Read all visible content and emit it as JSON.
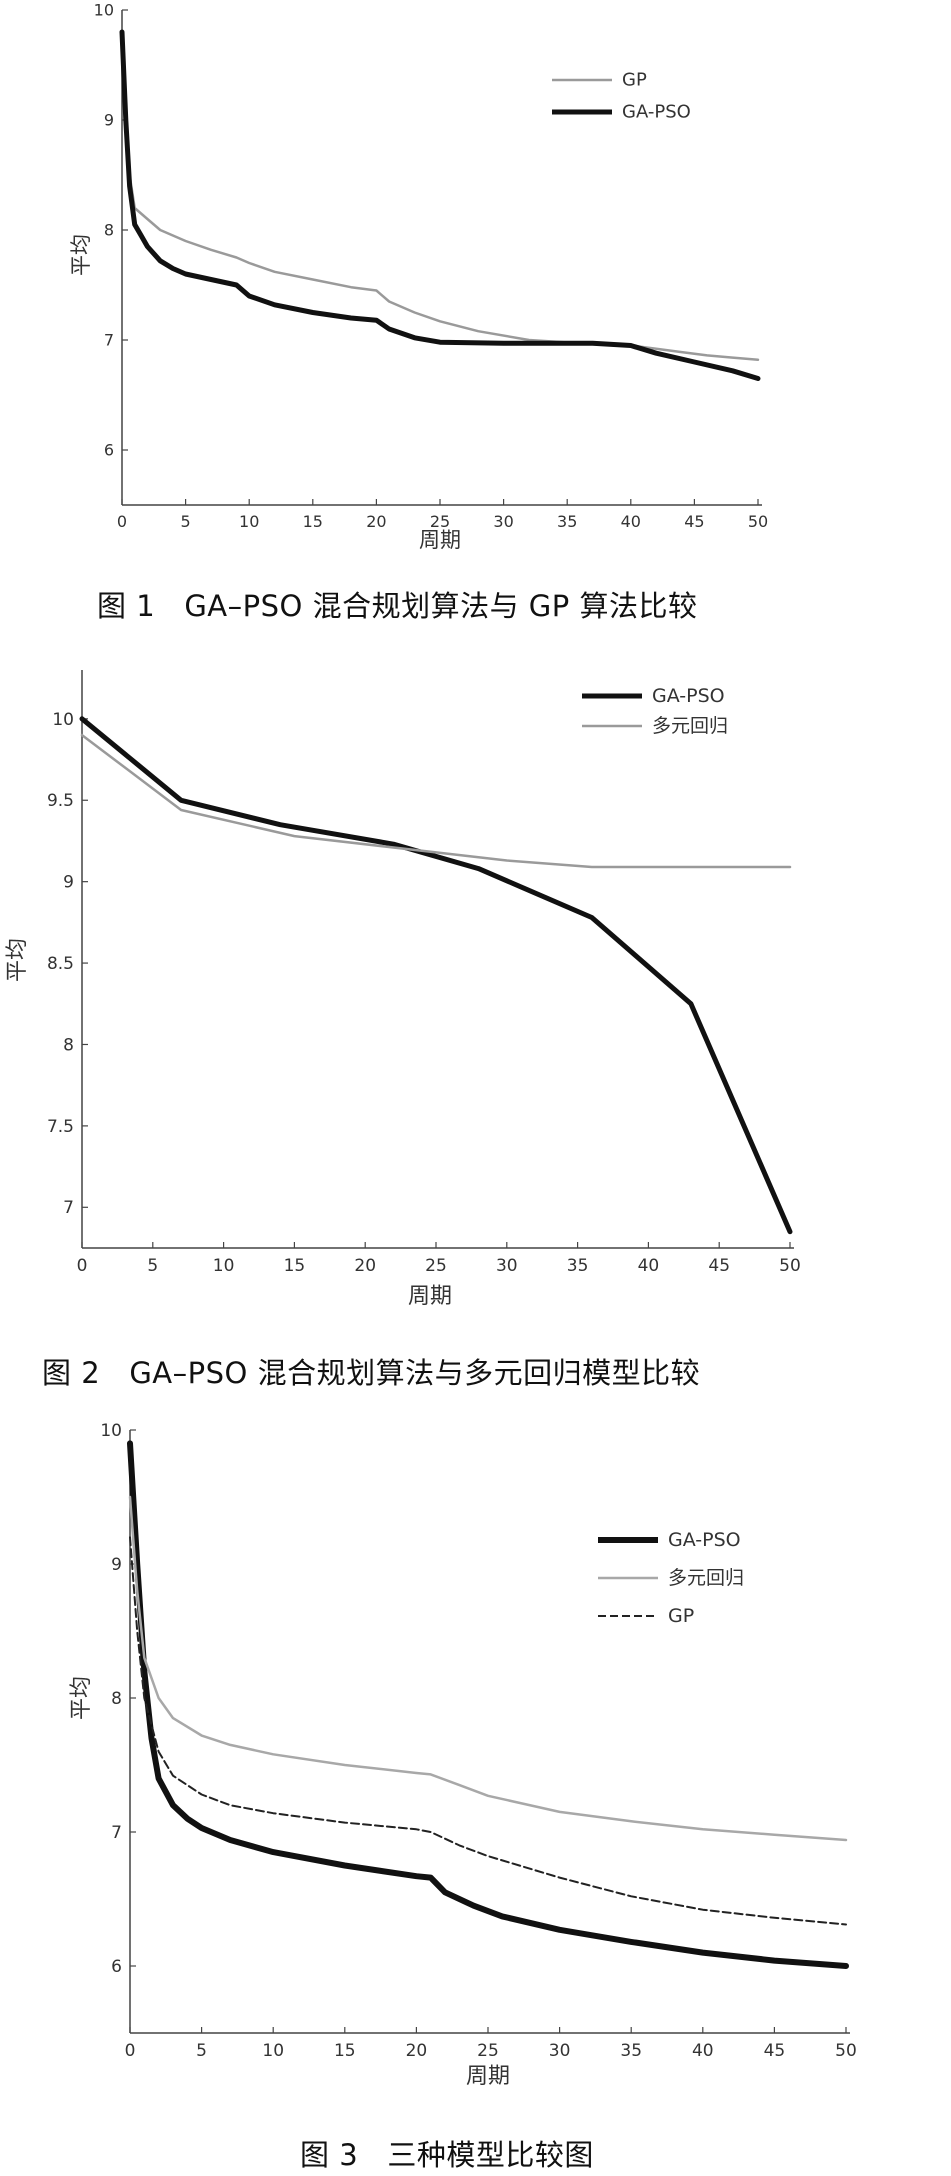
{
  "figures": [
    {
      "caption": "图 1   GA–PSO 混合规划算法与 GP 算法比较",
      "chart_data": {
        "type": "line",
        "xlabel": "周期",
        "ylabel": "平均",
        "xlim": [
          0,
          50
        ],
        "ylim": [
          5.5,
          10
        ],
        "xticks": [
          0,
          5,
          10,
          15,
          20,
          25,
          30,
          35,
          40,
          45,
          50
        ],
        "yticks": [
          6,
          7,
          8,
          9,
          10
        ],
        "legend": "top-right",
        "series": [
          {
            "name": "GP",
            "color": "#9a9a9a",
            "width": 2.5,
            "x": [
              0,
              0.3,
              0.6,
              1,
              2,
              3,
              5,
              7,
              9,
              10,
              12,
              15,
              18,
              20,
              21,
              23,
              25,
              28,
              32,
              36,
              40,
              42,
              44,
              46,
              48,
              50
            ],
            "y": [
              9.8,
              9.0,
              8.5,
              8.2,
              8.1,
              8.0,
              7.9,
              7.82,
              7.75,
              7.7,
              7.62,
              7.55,
              7.48,
              7.45,
              7.35,
              7.25,
              7.17,
              7.08,
              7.0,
              6.97,
              6.95,
              6.92,
              6.89,
              6.86,
              6.84,
              6.82
            ]
          },
          {
            "name": "GA-PSO",
            "color": "#111111",
            "width": 5,
            "x": [
              0,
              0.3,
              0.6,
              1,
              1.5,
              2,
              3,
              4,
              5,
              7,
              9,
              10,
              12,
              15,
              18,
              20,
              21,
              23,
              25,
              30,
              35,
              37,
              40,
              42,
              45,
              48,
              50
            ],
            "y": [
              9.8,
              9.0,
              8.4,
              8.05,
              7.95,
              7.85,
              7.72,
              7.65,
              7.6,
              7.55,
              7.5,
              7.4,
              7.32,
              7.25,
              7.2,
              7.18,
              7.1,
              7.02,
              6.98,
              6.97,
              6.97,
              6.97,
              6.95,
              6.88,
              6.8,
              6.72,
              6.65
            ]
          }
        ]
      }
    },
    {
      "caption": "图 2   GA–PSO 混合规划算法与多元回归模型比较",
      "chart_data": {
        "type": "line",
        "xlabel": "周期",
        "ylabel": "平均",
        "xlim": [
          0,
          50
        ],
        "ylim": [
          6.75,
          10.3
        ],
        "xticks": [
          0,
          5,
          10,
          15,
          20,
          25,
          30,
          35,
          40,
          45,
          50
        ],
        "yticks": [
          7,
          7.5,
          8,
          8.5,
          9,
          9.5,
          10
        ],
        "ytick_labels": [
          "7",
          "7.5",
          "8",
          "8.5",
          "9",
          "9.5",
          "10"
        ],
        "legend": "top-right",
        "series": [
          {
            "name": "GA-PSO",
            "color": "#111111",
            "width": 5,
            "x": [
              0,
              7,
              14,
              22,
              28,
              36,
              43,
              50
            ],
            "y": [
              10.0,
              9.5,
              9.35,
              9.23,
              9.08,
              8.78,
              8.25,
              6.85
            ]
          },
          {
            "name": "多元回归",
            "color": "#9a9a9a",
            "width": 2.5,
            "x": [
              0,
              7,
              15,
              25,
              30,
              36,
              40,
              50
            ],
            "y": [
              9.9,
              9.44,
              9.28,
              9.18,
              9.13,
              9.09,
              9.09,
              9.09
            ]
          }
        ]
      }
    },
    {
      "caption": "图 3   三种模型比较图",
      "chart_data": {
        "type": "line",
        "xlabel": "周期",
        "ylabel": "平均",
        "xlim": [
          0,
          50
        ],
        "ylim": [
          5.5,
          10
        ],
        "xticks": [
          0,
          5,
          10,
          15,
          20,
          25,
          30,
          35,
          40,
          45,
          50
        ],
        "yticks": [
          6,
          7,
          8,
          9,
          10
        ],
        "legend": "top-right",
        "series": [
          {
            "name": "GA-PSO",
            "color": "#111111",
            "width": 6,
            "x": [
              0,
              0.5,
              1,
              1.5,
              2,
              3,
              4,
              5,
              7,
              10,
              15,
              20,
              21,
              22,
              24,
              26,
              30,
              35,
              40,
              45,
              50
            ],
            "y": [
              9.9,
              9.0,
              8.2,
              7.7,
              7.4,
              7.2,
              7.1,
              7.03,
              6.94,
              6.85,
              6.75,
              6.67,
              6.66,
              6.55,
              6.45,
              6.37,
              6.27,
              6.18,
              6.1,
              6.04,
              6.0
            ]
          },
          {
            "name": "多元回归",
            "color": "#a8a8a8",
            "width": 2.5,
            "x": [
              0,
              0.5,
              1,
              2,
              3,
              5,
              7,
              10,
              15,
              20,
              21,
              23,
              25,
              30,
              35,
              40,
              45,
              50
            ],
            "y": [
              9.5,
              8.8,
              8.3,
              8.0,
              7.85,
              7.72,
              7.65,
              7.58,
              7.5,
              7.44,
              7.43,
              7.35,
              7.27,
              7.15,
              7.08,
              7.02,
              6.98,
              6.94
            ]
          },
          {
            "name": "GP",
            "color": "#222222",
            "width": 2,
            "dash": "8,4",
            "x": [
              0,
              0.5,
              1,
              2,
              3,
              5,
              7,
              10,
              15,
              20,
              21,
              23,
              25,
              30,
              35,
              40,
              45,
              50
            ],
            "y": [
              9.2,
              8.5,
              8.0,
              7.6,
              7.42,
              7.28,
              7.2,
              7.14,
              7.07,
              7.02,
              7.0,
              6.9,
              6.82,
              6.66,
              6.52,
              6.42,
              6.36,
              6.31
            ]
          }
        ]
      }
    }
  ]
}
